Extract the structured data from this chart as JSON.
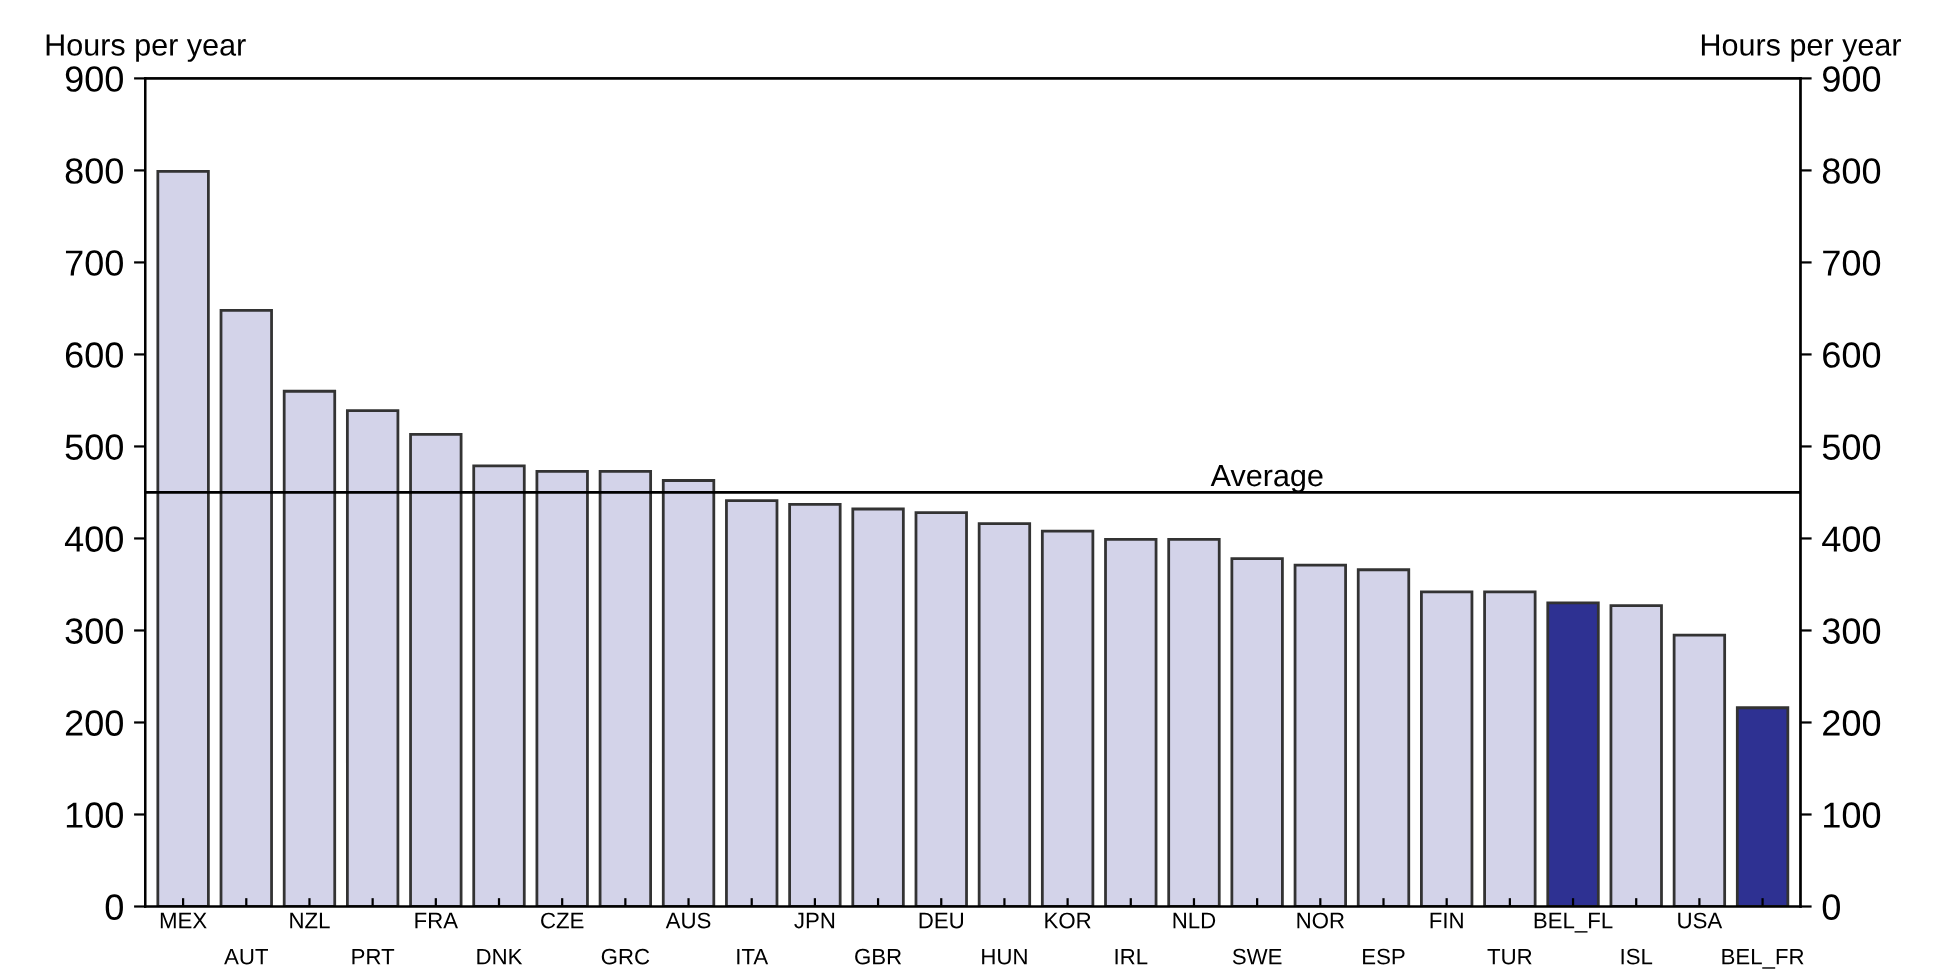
{
  "chart_data": {
    "type": "bar",
    "ylabel": "Hours per year",
    "y2label": "Hours per year",
    "categories": [
      "MEX",
      "AUT",
      "NZL",
      "PRT",
      "FRA",
      "DNK",
      "CZE",
      "GRC",
      "AUS",
      "ITA",
      "JPN",
      "GBR",
      "DEU",
      "HUN",
      "KOR",
      "IRL",
      "NLD",
      "SWE",
      "NOR",
      "ESP",
      "FIN",
      "TUR",
      "BEL_FL",
      "ISL",
      "USA",
      "BEL_FR"
    ],
    "values": [
      799,
      648,
      560,
      539,
      513,
      479,
      473,
      473,
      463,
      441,
      437,
      432,
      428,
      416,
      408,
      399,
      399,
      378,
      371,
      366,
      342,
      342,
      330,
      327,
      295,
      216
    ],
    "colors": [
      "#d3d3e9",
      "#d3d3e9",
      "#d3d3e9",
      "#d3d3e9",
      "#d3d3e9",
      "#d3d3e9",
      "#d3d3e9",
      "#d3d3e9",
      "#d3d3e9",
      "#d3d3e9",
      "#d3d3e9",
      "#d3d3e9",
      "#d3d3e9",
      "#d3d3e9",
      "#d3d3e9",
      "#d3d3e9",
      "#d3d3e9",
      "#d3d3e9",
      "#d3d3e9",
      "#d3d3e9",
      "#d3d3e9",
      "#d3d3e9",
      "#2e3192",
      "#d3d3e9",
      "#d3d3e9",
      "#2e3192"
    ],
    "ylim": [
      0,
      900
    ],
    "yticks": [
      0,
      100,
      200,
      300,
      400,
      500,
      600,
      700,
      800,
      900
    ],
    "y2lim": [
      0,
      900
    ],
    "y2ticks": [
      0,
      100,
      200,
      300,
      400,
      500,
      600,
      700,
      800,
      900
    ],
    "ref_lines": [
      {
        "axis": "y",
        "value": 450,
        "label": "Average",
        "color": "#000000"
      }
    ],
    "grid": false
  }
}
